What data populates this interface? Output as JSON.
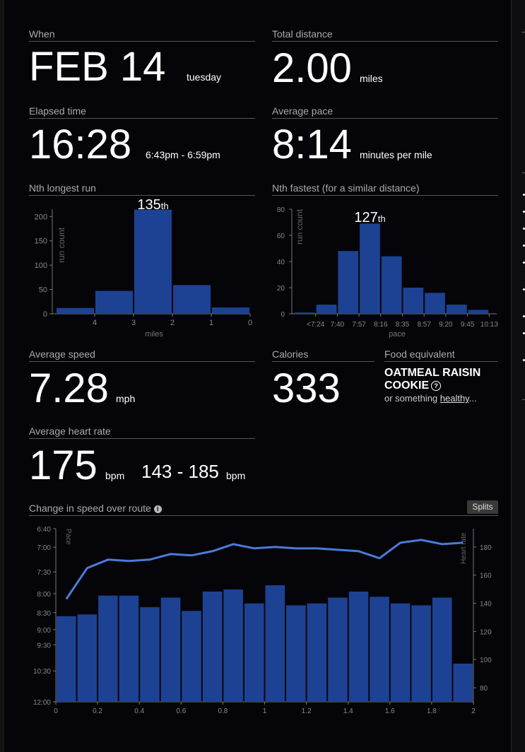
{
  "when": {
    "label": "When",
    "date": "FEB 14",
    "weekday": "tuesday"
  },
  "total_distance": {
    "label": "Total distance",
    "value": "2.00",
    "unit": "miles"
  },
  "elapsed_time": {
    "label": "Elapsed time",
    "value": "16:28",
    "range": "6:43pm - 6:59pm"
  },
  "average_pace": {
    "label": "Average pace",
    "value": "8:14",
    "unit": "minutes per mile"
  },
  "nth_longest": {
    "label": "Nth longest run",
    "rank_num": "135",
    "rank_suffix": "th"
  },
  "nth_fastest": {
    "label": "Nth fastest (for a similar distance)",
    "rank_num": "127",
    "rank_suffix": "th"
  },
  "average_speed": {
    "label": "Average speed",
    "value": "7.28",
    "unit": "mph"
  },
  "calories": {
    "label": "Calories",
    "value": "333"
  },
  "food": {
    "label": "Food equivalent",
    "title": "OATMEAL RAISIN COOKIE",
    "help_icon": "?",
    "prefix": "or something ",
    "link": "healthy",
    "suffix": "..."
  },
  "heart_rate": {
    "label": "Average heart rate",
    "value": "175",
    "unit": "bpm",
    "range": "143 - 185",
    "range_unit": "bpm"
  },
  "route": {
    "label": "Change in speed over route",
    "info_icon": "i",
    "splits_label": "Splits"
  },
  "colors": {
    "bar": "#1d4293",
    "line": "#4a7bd8",
    "bg": "#050509"
  },
  "chart_data": [
    {
      "type": "bar",
      "ylabel": "run count",
      "xlabel": "miles",
      "ylim": [
        0,
        215
      ],
      "yticks": [
        0,
        50,
        100,
        150,
        200
      ],
      "x": [
        4.5,
        3.5,
        2.5,
        1.5,
        0.5
      ],
      "xticks": [
        4,
        3,
        2,
        1,
        0
      ],
      "values": [
        12,
        47,
        214,
        59,
        13
      ],
      "highlight_index": 2
    },
    {
      "type": "bar",
      "ylabel": "run count",
      "xlabel": "pace",
      "ylim": [
        0,
        80
      ],
      "yticks": [
        0,
        20,
        40,
        60,
        80
      ],
      "categories": [
        "<7:24",
        "7:40",
        "7:57",
        "8:16",
        "8:35",
        "8:57",
        "9:20",
        "9:45",
        "10:13"
      ],
      "values": [
        1,
        7,
        48,
        69,
        44,
        20,
        16,
        7,
        3
      ],
      "highlight_index": 3
    },
    {
      "type": "bar+line",
      "left_axis": {
        "label": "Pace",
        "ticks": [
          "6:40",
          "7:00",
          "7:30",
          "8:00",
          "8:30",
          "9:00",
          "9:30",
          "10:30",
          "12:00"
        ],
        "tick_values": [
          6.667,
          7,
          7.5,
          8,
          8.5,
          9,
          9.5,
          10.5,
          12
        ]
      },
      "right_axis": {
        "label": "Heart rate",
        "ticks": [
          80,
          100,
          120,
          140,
          160,
          180
        ],
        "ylim": [
          70,
          193
        ]
      },
      "x_axis": {
        "ticks": [
          "0",
          "0.2",
          "0.4",
          "0.6",
          "0.8",
          "1",
          "1.2",
          "1.4",
          "1.6",
          "1.8",
          "2"
        ],
        "xlim": [
          0,
          2
        ]
      },
      "pace_bars": [
        8.6,
        8.55,
        8.05,
        8.05,
        8.35,
        8.1,
        8.45,
        7.95,
        7.9,
        8.25,
        7.8,
        8.3,
        8.25,
        8.1,
        7.95,
        8.08,
        8.25,
        8.3,
        8.1,
        10.2
      ],
      "heart_rate_x": [
        0.05,
        0.15,
        0.25,
        0.35,
        0.45,
        0.55,
        0.65,
        0.75,
        0.85,
        0.95,
        1.05,
        1.15,
        1.25,
        1.35,
        1.45,
        1.55,
        1.65,
        1.75,
        1.85,
        1.95
      ],
      "heart_rate": [
        143,
        165,
        171,
        170,
        171,
        175,
        174,
        177,
        182,
        179,
        180,
        179,
        179,
        178,
        177,
        172,
        183,
        185,
        182,
        183
      ]
    }
  ]
}
